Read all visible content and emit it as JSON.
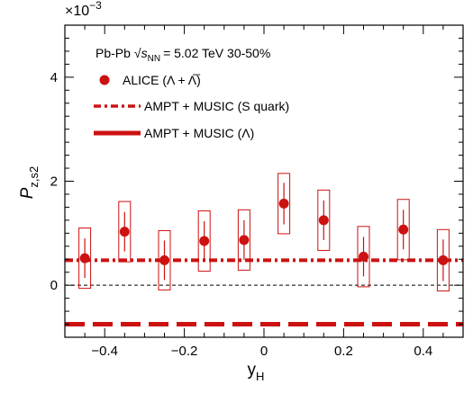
{
  "chart_data": {
    "type": "scatter",
    "xlabel": "y",
    "xlabel_sub": "H",
    "ylabel": "P",
    "ylabel_sub": "z,s2",
    "y_multiplier_base": "×10",
    "y_multiplier_exp": "−3",
    "xlim": [
      -0.5,
      0.5
    ],
    "ylim": [
      -1.0,
      5.0
    ],
    "x_ticks": [
      -0.4,
      -0.2,
      0.0,
      0.2,
      0.4
    ],
    "x_tick_labels": [
      "−0.4",
      "−0.2",
      "0",
      "0.2",
      "0.4"
    ],
    "y_ticks": [
      0,
      2,
      4
    ],
    "y_tick_labels": [
      "0",
      "2",
      "4"
    ],
    "zero_line": true,
    "legend_position": "top-left",
    "legend_header": {
      "system": "Pb-Pb",
      "sqrt_s": "√s",
      "sqrt_s_sub": "NN",
      "energy": "= 5.02 TeV 30-50%"
    },
    "colors": {
      "series": "#cc1111",
      "zero_line": "#000000"
    },
    "series": [
      {
        "name": "ALICE (Λ + Λ̅)",
        "style": "points",
        "x": [
          -0.45,
          -0.35,
          -0.25,
          -0.15,
          -0.05,
          0.05,
          0.15,
          0.25,
          0.35,
          0.45
        ],
        "y": [
          0.52,
          1.03,
          0.48,
          0.85,
          0.87,
          1.57,
          1.25,
          0.55,
          1.07,
          0.48
        ],
        "stat_err": [
          0.38,
          0.38,
          0.38,
          0.38,
          0.38,
          0.4,
          0.38,
          0.38,
          0.38,
          0.4
        ],
        "sys_err": [
          0.58,
          0.58,
          0.57,
          0.58,
          0.58,
          0.58,
          0.58,
          0.58,
          0.58,
          0.59
        ]
      },
      {
        "name": "AMPT + MUSIC (S quark)",
        "style": "dash-dot",
        "x": [
          -0.5,
          0.5
        ],
        "y": [
          0.48,
          0.48
        ]
      },
      {
        "name": "AMPT + MUSIC (Λ)",
        "style": "dashed",
        "x": [
          -0.5,
          0.5
        ],
        "y": [
          -0.75,
          -0.75
        ]
      }
    ]
  }
}
